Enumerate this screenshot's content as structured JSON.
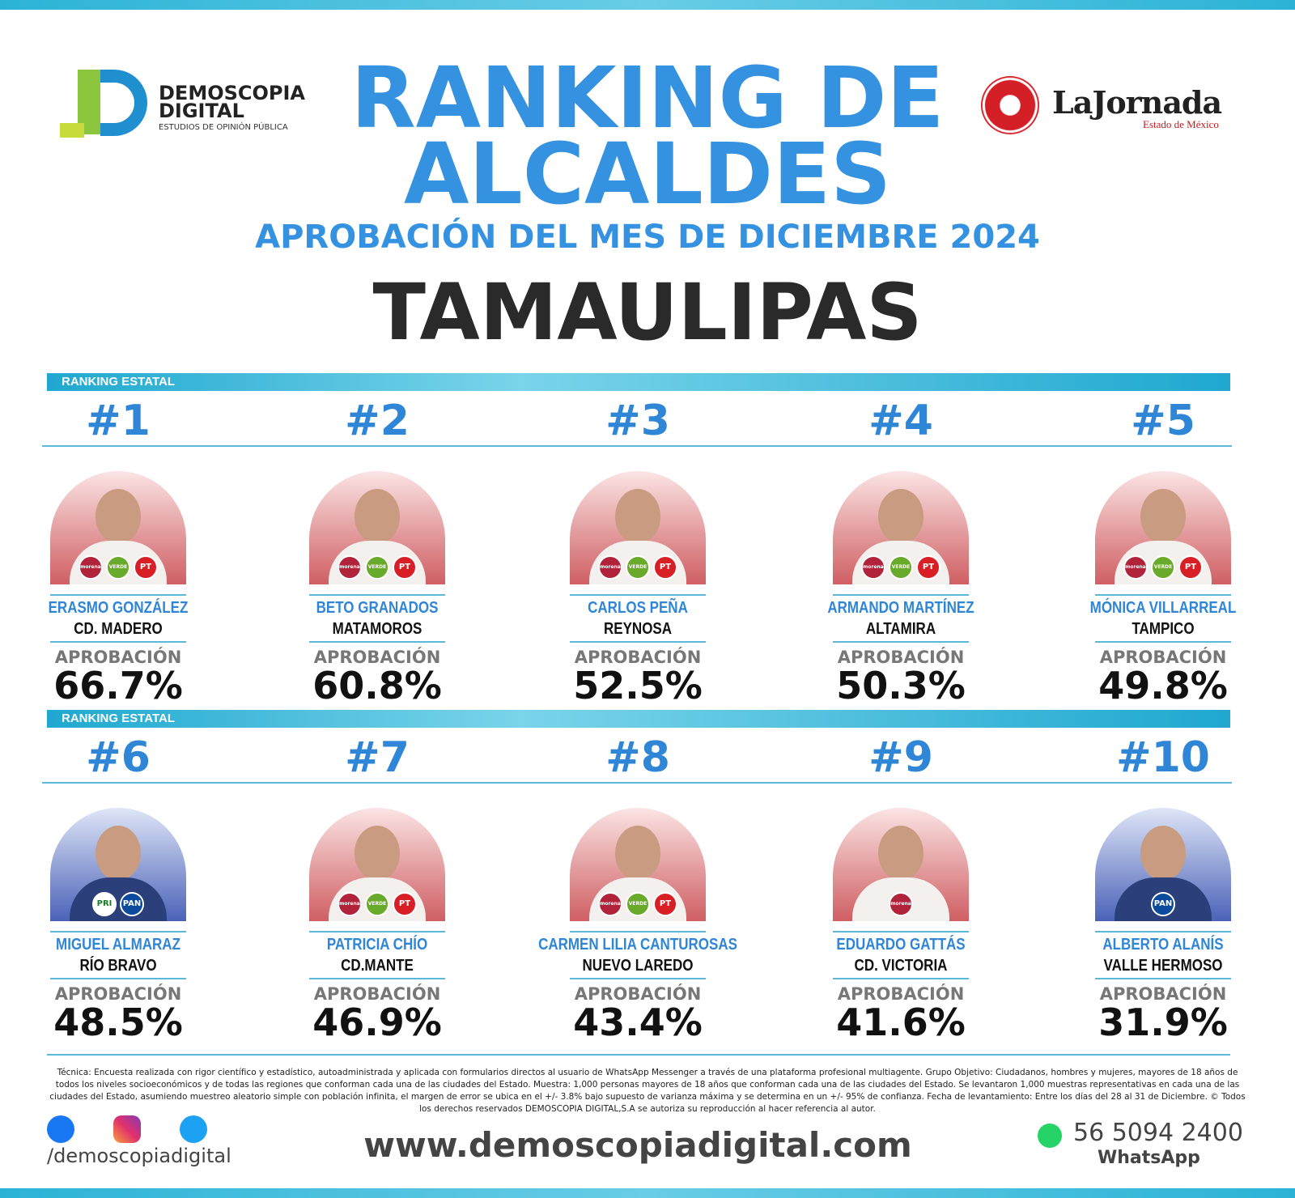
{
  "header": {
    "logo_left": {
      "line1": "DEMOSCOPIA",
      "line2": "DIGITAL",
      "line3": "ESTUDIOS DE OPINIÓN PÚBLICA"
    },
    "title_line1": "RANKING DE",
    "title_line2": "ALCALDES",
    "subtitle": "APROBACIÓN DEL MES DE DICIEMBRE 2024",
    "state": "TAMAULIPAS",
    "logo_right": {
      "name": "LaJornada",
      "region": "Estado de México"
    }
  },
  "sections": [
    {
      "label": "RANKING ESTATAL",
      "entries": [
        {
          "rank": "#1",
          "name": "ERASMO GONZÁLEZ",
          "city": "CD. MADERO",
          "approval_label": "APROBACIÓN",
          "approval": "66.7%",
          "parties": [
            "morena",
            "VERDE",
            "PT"
          ]
        },
        {
          "rank": "#2",
          "name": "BETO GRANADOS",
          "city": "MATAMOROS",
          "approval_label": "APROBACIÓN",
          "approval": "60.8%",
          "parties": [
            "morena",
            "VERDE",
            "PT"
          ]
        },
        {
          "rank": "#3",
          "name": "CARLOS PEÑA",
          "city": "REYNOSA",
          "approval_label": "APROBACIÓN",
          "approval": "52.5%",
          "parties": [
            "morena",
            "VERDE",
            "PT"
          ]
        },
        {
          "rank": "#4",
          "name": "ARMANDO MARTÍNEZ",
          "city": "ALTAMIRA",
          "approval_label": "APROBACIÓN",
          "approval": "50.3%",
          "parties": [
            "morena",
            "VERDE",
            "PT"
          ]
        },
        {
          "rank": "#5",
          "name": "MÓNICA VILLARREAL",
          "city": "TAMPICO",
          "approval_label": "APROBACIÓN",
          "approval": "49.8%",
          "parties": [
            "morena",
            "VERDE",
            "PT"
          ]
        }
      ]
    },
    {
      "label": "RANKING ESTATAL",
      "entries": [
        {
          "rank": "#6",
          "name": "MIGUEL ALMARAZ",
          "city": "RÍO BRAVO",
          "approval_label": "APROBACIÓN",
          "approval": "48.5%",
          "parties": [
            "PRI",
            "PAN"
          ]
        },
        {
          "rank": "#7",
          "name": "PATRICIA CHÍO",
          "city": "CD.MANTE",
          "approval_label": "APROBACIÓN",
          "approval": "46.9%",
          "parties": [
            "morena",
            "VERDE",
            "PT"
          ]
        },
        {
          "rank": "#8",
          "name": "CARMEN LILIA CANTUROSAS",
          "city": "NUEVO LAREDO",
          "approval_label": "APROBACIÓN",
          "approval": "43.4%",
          "parties": [
            "morena",
            "VERDE",
            "PT"
          ]
        },
        {
          "rank": "#9",
          "name": "EDUARDO GATTÁS",
          "city": "CD. VICTORIA",
          "approval_label": "APROBACIÓN",
          "approval": "41.6%",
          "parties": [
            "morena"
          ]
        },
        {
          "rank": "#10",
          "name": "ALBERTO ALANÍS",
          "city": "VALLE HERMOSO",
          "approval_label": "APROBACIÓN",
          "approval": "31.9%",
          "parties": [
            "PAN"
          ]
        }
      ]
    }
  ],
  "footer": {
    "methodology": "Técnica: Encuesta realizada con rigor científico y estadístico, autoadministrada y aplicada con formularios directos al usuario de WhatsApp Messenger a través de una plataforma profesional multiagente. Grupo Objetivo: Ciudadanos, hombres y mujeres, mayores de 18 años de todos los niveles socioeconómicos y de todas las regiones que conforman cada una de las ciudades del Estado. Muestra: 1,000 personas mayores de 18 años que conforman cada una de las ciudades del Estado. Se levantaron 1,000 muestras representativas en cada una de las ciudades del Estado, asumiendo muestreo aleatorio simple con población infinita, el margen de error se ubica en el +/- 3.8% bajo supuesto de varianza máxima y se determina en un +/- 95% de confianza. Fecha de levantamiento: Entre los días del 28 al 31 de Diciembre. © Todos los derechos reservados DEMOSCOPIA DIGITAL,S.A se autoriza su reproducción al hacer referencia al autor.",
    "handle": "/demoscopiadigital",
    "website": "www.demoscopiadigital.com",
    "phone": "56 5094 2400",
    "phone_label": "WhatsApp"
  }
}
